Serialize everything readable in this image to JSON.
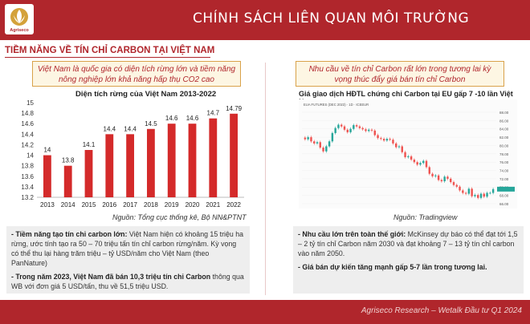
{
  "header": {
    "title": "CHÍNH SÁCH LIÊN QUAN MÔI TRƯỜNG",
    "logo_text": "Agriseco"
  },
  "section": {
    "title": "TIỀM NĂNG VỀ TÍN CHỈ CARBON TẠI VIỆT NAM"
  },
  "left": {
    "highlight": "Việt Nam là quốc gia có diện tích rừng lớn và tiềm năng nông nghiệp lớn khả năng hấp thụ CO2 cao",
    "source": "Nguồn: Tổng cục thống kê, Bộ NN&PTNT",
    "bullets": [
      {
        "bold": "- Tiềm năng tạo tín chỉ carbon lớn:",
        "text": " Việt Nam hiện có khoảng 15 triệu ha rừng, ước tính tạo ra 50 – 70 triệu tấn tín chỉ carbon rừng/năm. Kỳ vọng có thể thu lại hàng trăm triệu – tỷ USD/năm cho Việt Nam (theo PanNature)"
      },
      {
        "bold": "- Trong năm 2023, Việt Nam đã bán 10,3 triệu tín chỉ Carbon",
        "text": " thông qua WB với đơn giá 5 USD/tấn, thu về 51,5 triệu USD."
      }
    ]
  },
  "right": {
    "highlight": "Nhu cầu về tín chỉ Carbon rất lớn trong tương lai kỳ vọng thúc đẩy giá bán tín chỉ Carbon",
    "chart_title": "Giá giao dịch HĐTL chứng chỉ Carbon tại EU  gấp 7 -10 lần Việt Nam",
    "source": "Nguồn: Tradingview",
    "bullets": [
      {
        "bold": "- Nhu cầu lớn trên toàn thế giới:",
        "text": " McKinsey dự báo có thể đạt tới 1,5 – 2 tỷ tín chỉ Carbon năm 2030 và đạt khoảng 7 – 13 tỷ tín chỉ carbon vào năm 2050."
      },
      {
        "bold": "- Giá bán dự kiến tăng mạnh gấp 5-7 lần trong tương lai.",
        "text": ""
      }
    ]
  },
  "footer": {
    "text": "Agriseco Research – Wetalk Đầu tư Q1 2024"
  },
  "colors": {
    "brand_red": "#b0262c",
    "bar_red": "#d42a2a",
    "candle_up": "#26a69a",
    "candle_down": "#ef5350"
  },
  "chart_data": [
    {
      "type": "bar",
      "title": "Diện tích rừng của Việt Nam 2013-2022",
      "categories": [
        "2013",
        "2014",
        "2015",
        "2016",
        "2017",
        "2018",
        "2019",
        "2020",
        "2021",
        "2022"
      ],
      "values": [
        14,
        13.8,
        14.1,
        14.4,
        14.4,
        14.5,
        14.6,
        14.6,
        14.7,
        14.79
      ],
      "value_labels": [
        "14",
        "13.8",
        "14.1",
        "14.4",
        "14.4",
        "14.5",
        "14.6",
        "14.6",
        "14.7",
        "14.79"
      ],
      "ylim": [
        13.2,
        15
      ],
      "yticks": [
        "13.2",
        "13.4",
        "13.6",
        "13.8",
        "14",
        "14.2",
        "14.4",
        "14.6",
        "14.8",
        "15"
      ],
      "xlabel": "",
      "ylabel": "",
      "grid": false
    },
    {
      "type": "line",
      "title": "Giá giao dịch HĐTL chứng chỉ Carbon tại EU  gấp 7 -10 lần Việt Nam",
      "header_text": "EUA FUTURES (DEC 2023) · 1D · ICEEUR",
      "y_axis": "right",
      "ylim": [
        66,
        88
      ],
      "yticks": [
        "88.00",
        "86.00",
        "84.00",
        "82.00",
        "80.00",
        "78.00",
        "76.00",
        "74.00",
        "72.00",
        "70.00",
        "68.00",
        "66.00"
      ],
      "values": [
        81.5,
        82,
        81,
        80.5,
        80.8,
        79.5,
        78.6,
        79.8,
        81,
        83,
        84.2,
        85,
        84.6,
        83.8,
        83.2,
        84,
        84.9,
        84.6,
        84.2,
        83.9,
        83.5,
        83.8,
        83.6,
        82.5,
        81.8,
        81.6,
        81.2,
        81.6,
        81.4,
        80.5,
        79.6,
        79.8,
        78.4,
        77.2,
        77.4,
        76.6,
        76,
        75.4,
        75.8,
        76.3,
        74.8,
        73.2,
        72.6,
        72.8,
        71.7,
        71.4,
        72.5,
        72,
        71.2,
        70.5,
        70.1,
        69.2,
        68.6,
        68.4,
        69.6,
        67.8,
        68.1,
        67.4,
        68.4,
        67.7,
        68.6,
        68.6,
        69.5
      ]
    }
  ]
}
